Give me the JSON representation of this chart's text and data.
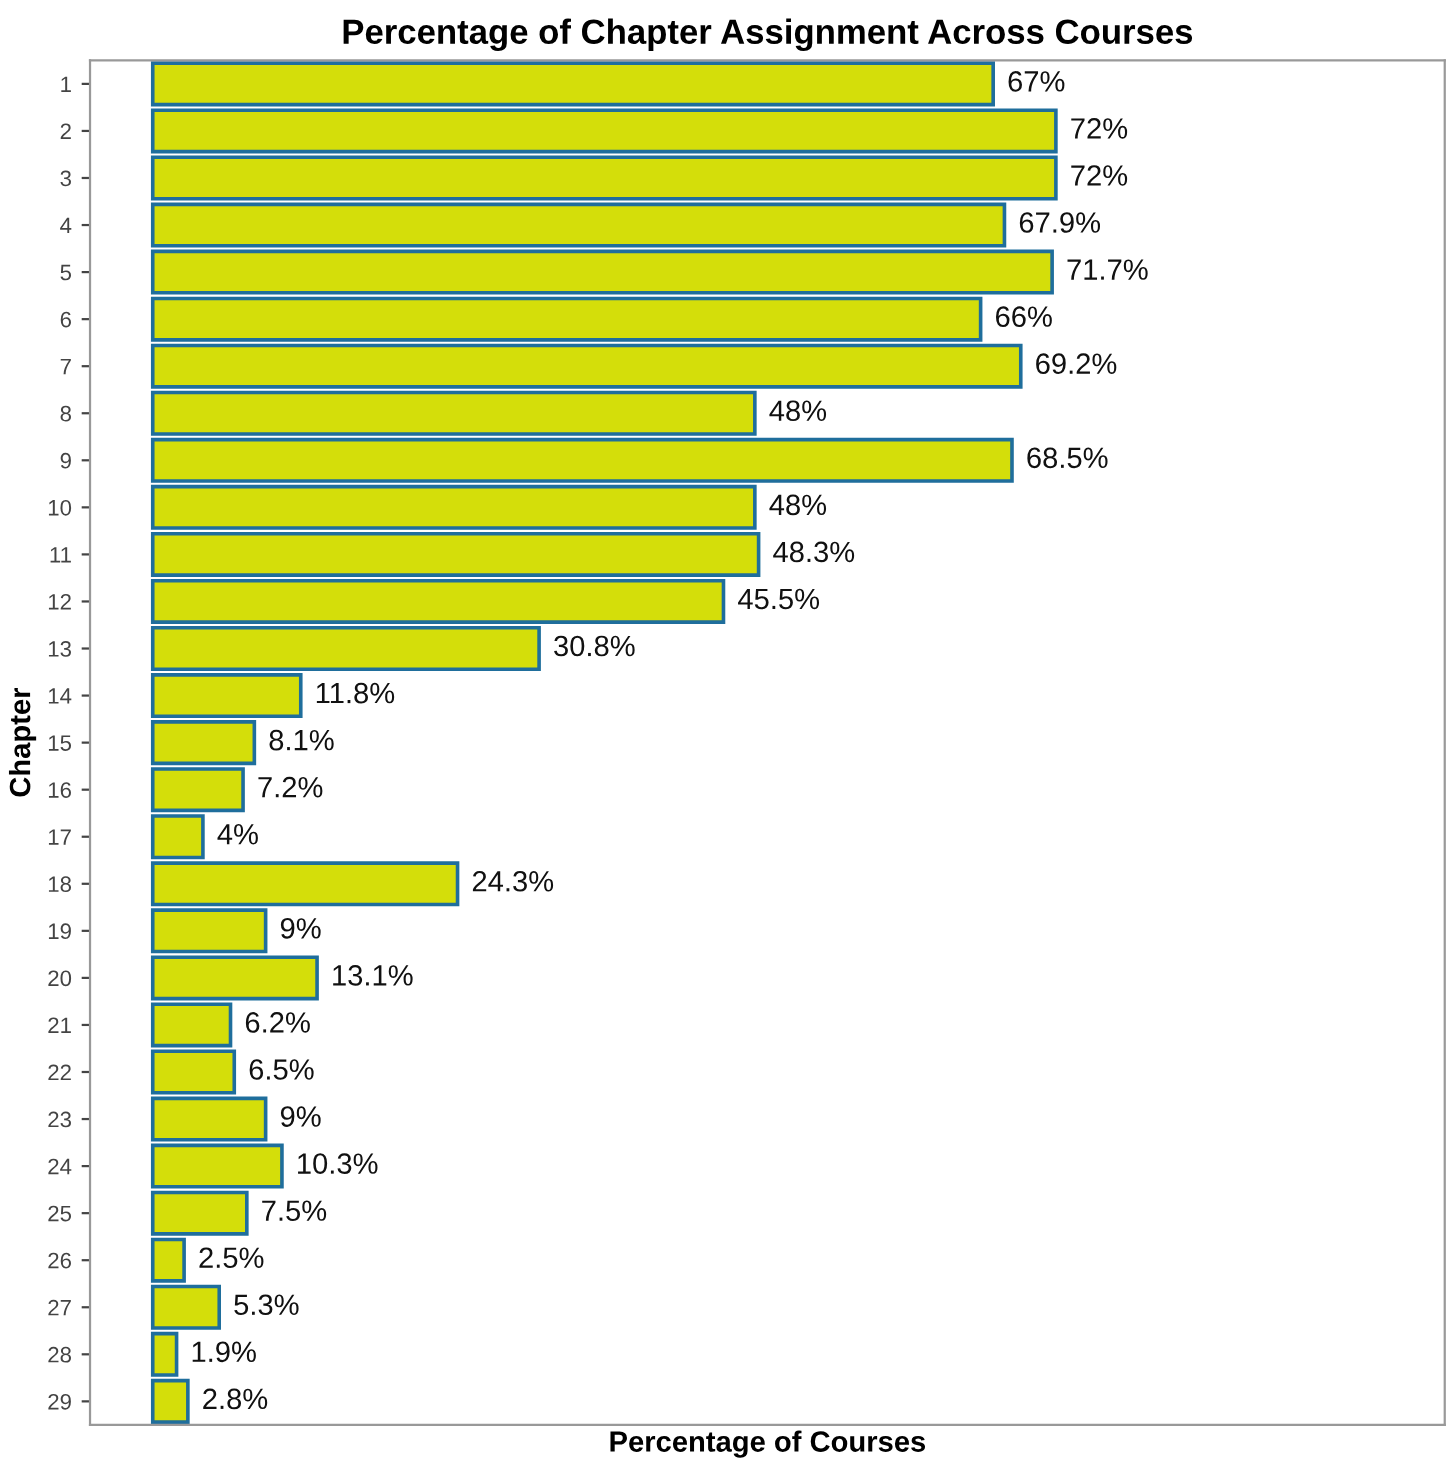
{
  "chart_data": {
    "type": "bar",
    "orientation": "horizontal",
    "title": "Percentage of Chapter Assignment Across Courses",
    "xlabel": "Percentage of Courses",
    "ylabel": "Chapter",
    "categories": [
      "1",
      "2",
      "3",
      "4",
      "5",
      "6",
      "7",
      "8",
      "9",
      "10",
      "11",
      "12",
      "13",
      "14",
      "15",
      "16",
      "17",
      "18",
      "19",
      "20",
      "21",
      "22",
      "23",
      "24",
      "25",
      "26",
      "27",
      "28",
      "29"
    ],
    "values": [
      67,
      72,
      72,
      67.9,
      71.7,
      66,
      69.2,
      48,
      68.5,
      48,
      48.3,
      45.5,
      30.8,
      11.8,
      8.1,
      7.2,
      4,
      24.3,
      9,
      13.1,
      6.2,
      6.5,
      9,
      10.3,
      7.5,
      2.5,
      5.3,
      1.9,
      2.8
    ],
    "value_labels": [
      "67%",
      "72%",
      "72%",
      "67.9%",
      "71.7%",
      "66%",
      "69.2%",
      "48%",
      "68.5%",
      "48%",
      "48.3%",
      "45.5%",
      "30.8%",
      "11.8%",
      "8.1%",
      "7.2%",
      "4%",
      "24.3%",
      "9%",
      "13.1%",
      "6.2%",
      "6.5%",
      "9%",
      "10.3%",
      "7.5%",
      "2.5%",
      "5.3%",
      "1.9%",
      "2.8%"
    ],
    "color": "#d4de0a",
    "xlim": [
      -5,
      103
    ],
    "tick_labels": "y",
    "grid": false,
    "legend": false
  }
}
